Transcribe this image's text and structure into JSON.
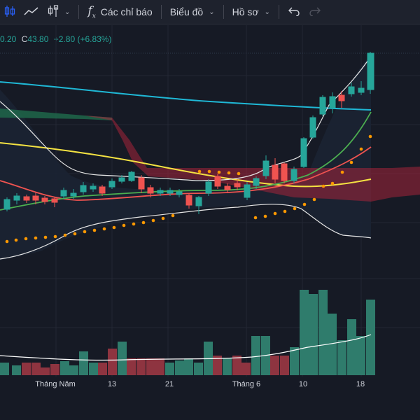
{
  "toolbar": {
    "indicators_label": "Các chỉ báo",
    "layout_label": "Biểu đồ",
    "profile_label": "Hồ sơ"
  },
  "legend": {
    "low_tail": "0.20",
    "close_label": "C",
    "close_value": "43.80",
    "change": "+2.80 (+6.83%)"
  },
  "time_axis": [
    "Tháng Năm",
    "13",
    "21",
    "Tháng 6",
    "10",
    "18"
  ],
  "colors": {
    "bg": "#161a25",
    "up": "#26a69a",
    "down": "#ef5350",
    "ma_blue": "#1fb8d6",
    "ma_yellow": "#f5e342",
    "ma_green": "#4caf50",
    "ma_red": "#ef5350",
    "bollinger": "#ffffff",
    "psar": "#ff9800",
    "cloud_green": "#1f6b4c",
    "cloud_red": "#a6253a"
  }
}
